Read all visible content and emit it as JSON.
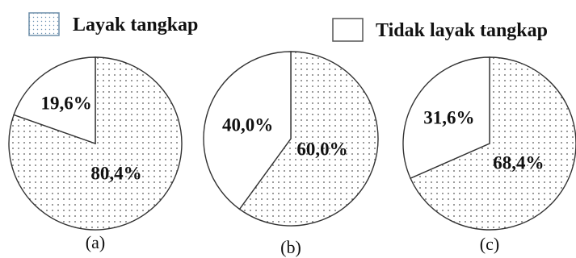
{
  "legend": [
    {
      "label": "Layak tangkap",
      "pattern": "dots"
    },
    {
      "label": "Tidak layak tangkap",
      "pattern": "none"
    }
  ],
  "chart_data": [
    {
      "type": "pie",
      "caption": "(a)",
      "slices": [
        {
          "name": "Layak tangkap",
          "value": 80.4,
          "label": "80,4%"
        },
        {
          "name": "Tidak layak tangkap",
          "value": 19.6,
          "label": "19,6%"
        }
      ]
    },
    {
      "type": "pie",
      "caption": "(b)",
      "slices": [
        {
          "name": "Layak tangkap",
          "value": 60.0,
          "label": "60,0%"
        },
        {
          "name": "Tidak layak tangkap",
          "value": 40.0,
          "label": "40,0%"
        }
      ]
    },
    {
      "type": "pie",
      "caption": "(c)",
      "slices": [
        {
          "name": "Layak tangkap",
          "value": 68.4,
          "label": "68,4%"
        },
        {
          "name": "Tidak layak tangkap",
          "value": 31.6,
          "label": "31,6%"
        }
      ]
    }
  ],
  "colors": {
    "stroke": "#333333",
    "dot": "#4a4a4a",
    "legend_dot": "#6a8fb0",
    "background": "#ffffff"
  }
}
